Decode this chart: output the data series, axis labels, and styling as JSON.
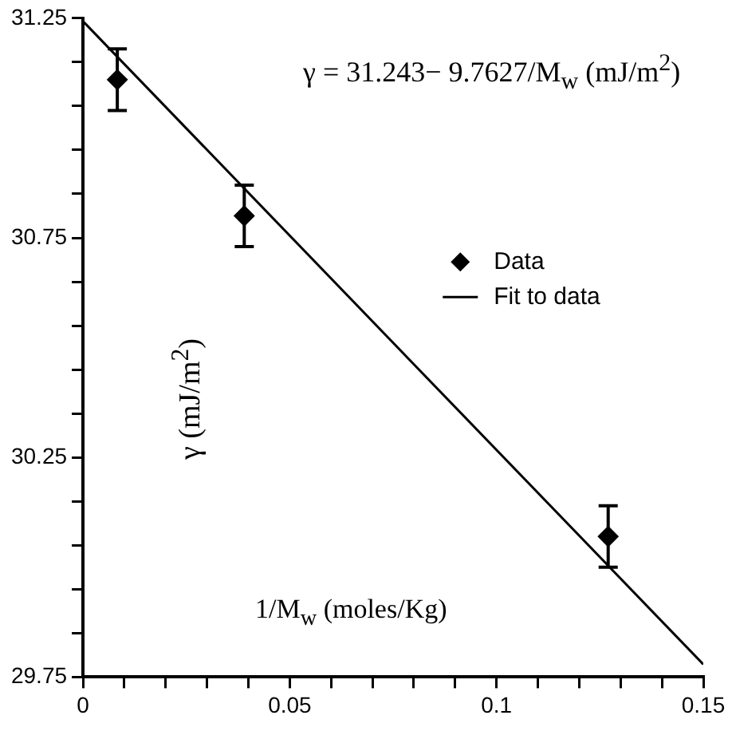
{
  "chart_data": {
    "type": "scatter",
    "xlabel": "1/M$_{w}$ (moles/Kg)",
    "ylabel": "γ (mJ/m$^{2}$)",
    "annotations": [
      "γ = 31.243− 9.7627/M$_{w}$ (mJ/m$^{2}$)"
    ],
    "xlim": [
      0,
      0.15
    ],
    "ylim": [
      29.75,
      31.25
    ],
    "xticks": [
      0,
      {
        "value": 0.01,
        "label": null
      },
      {
        "value": 0.02,
        "label": null
      },
      {
        "value": 0.03,
        "label": null
      },
      {
        "value": 0.04,
        "label": null
      },
      0.05,
      {
        "value": 0.06,
        "label": null
      },
      {
        "value": 0.07,
        "label": null
      },
      {
        "value": 0.08,
        "label": null
      },
      {
        "value": 0.09,
        "label": null
      },
      0.1,
      {
        "value": 0.11,
        "label": null
      },
      {
        "value": 0.12,
        "label": null
      },
      {
        "value": 0.13,
        "label": null
      },
      {
        "value": 0.14,
        "label": null
      },
      0.15
    ],
    "yticks": [
      29.75,
      {
        "value": 29.85,
        "label": null
      },
      {
        "value": 29.95,
        "label": null
      },
      {
        "value": 30.05,
        "label": null
      },
      {
        "value": 30.15,
        "label": null
      },
      30.25,
      {
        "value": 30.35,
        "label": null
      },
      {
        "value": 30.45,
        "label": null
      },
      {
        "value": 30.55,
        "label": null
      },
      {
        "value": 30.65,
        "label": null
      },
      30.75,
      {
        "value": 30.85,
        "label": null
      },
      {
        "value": 30.95,
        "label": null
      },
      {
        "value": 31.05,
        "label": null
      },
      {
        "value": 31.15,
        "label": null
      },
      31.25
    ],
    "legend": "right",
    "series": [
      {
        "name": "Data",
        "marker": "diamond",
        "color": "#000000",
        "x": [
          0.0083,
          0.039,
          0.127
        ],
        "values": [
          31.11,
          30.8,
          30.07
        ],
        "errors": [
          0.07,
          0.07,
          0.07
        ]
      },
      {
        "name": "Fit to data",
        "type": "line",
        "color": "#000000",
        "x": [
          0,
          0.15
        ],
        "values": [
          31.243,
          29.779
        ]
      }
    ]
  }
}
